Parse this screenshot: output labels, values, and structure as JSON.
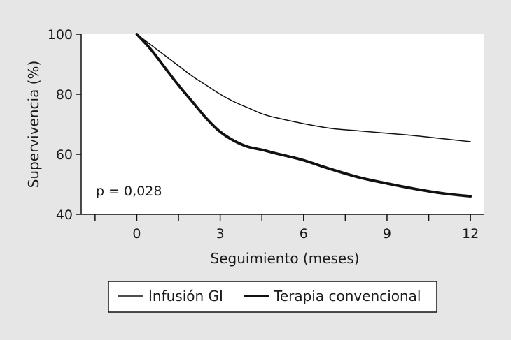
{
  "chart_data": {
    "type": "line",
    "title": "",
    "xlabel": "Seguimiento (meses)",
    "ylabel": "Supervivencia (%)",
    "xlim": [
      -2,
      12.5
    ],
    "ylim": [
      40,
      100
    ],
    "xticks": [
      0,
      3,
      6,
      9,
      12
    ],
    "xtick_labels": [
      "0",
      "3",
      "6",
      "9",
      "12"
    ],
    "minor_xticks": [
      -1.5,
      1.5,
      4.5,
      7.5,
      10.5
    ],
    "yticks": [
      40,
      60,
      80,
      100
    ],
    "ytick_labels": [
      "40",
      "60",
      "80",
      "100"
    ],
    "grid": false,
    "legend_position": "bottom",
    "annotation": "p = 0,028",
    "series": [
      {
        "name": "Infusión GI",
        "style": "thin",
        "color": "#111111",
        "x": [
          0,
          0.5,
          1,
          1.5,
          2,
          2.5,
          3,
          3.5,
          4,
          4.5,
          5,
          6,
          7,
          8,
          9,
          10,
          11,
          12
        ],
        "y": [
          100,
          96.5,
          93,
          89.5,
          86,
          83,
          80,
          77.5,
          75.5,
          73.5,
          72.2,
          70.2,
          68.6,
          67.8,
          67.0,
          66.2,
          65.2,
          64.2
        ]
      },
      {
        "name": "Terapia convencional",
        "style": "thick",
        "color": "#111111",
        "x": [
          0,
          0.5,
          1,
          1.5,
          2,
          2.5,
          3,
          3.5,
          4,
          4.5,
          5,
          5.5,
          6,
          7,
          8,
          9,
          10,
          11,
          12
        ],
        "y": [
          100,
          95,
          89,
          83,
          77.5,
          72,
          67.5,
          64.5,
          62.5,
          61.5,
          60.3,
          59.2,
          58,
          55,
          52.3,
          50.3,
          48.5,
          47,
          46
        ]
      }
    ]
  }
}
